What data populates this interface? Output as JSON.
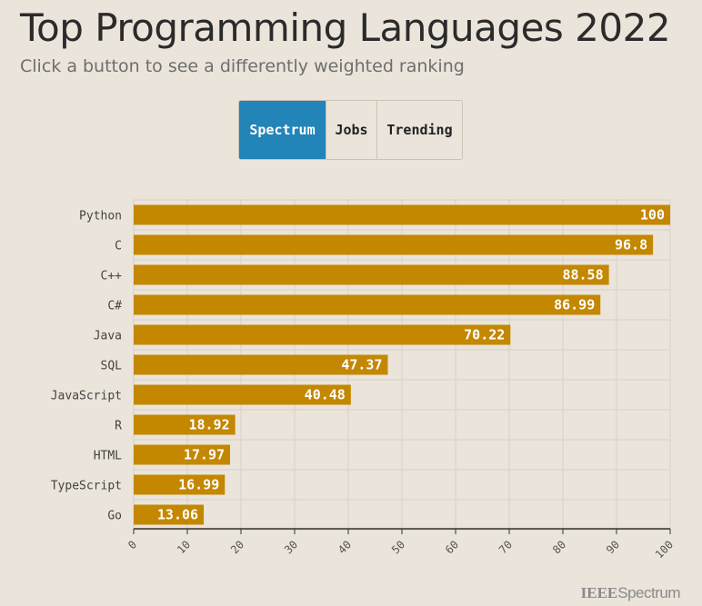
{
  "header": {
    "title": "Top Programming Languages 2022",
    "subtitle": "Click a button to see a differently weighted ranking"
  },
  "buttons": {
    "spectrum": "Spectrum",
    "jobs": "Jobs",
    "trending": "Trending",
    "active": "Spectrum"
  },
  "brand": {
    "prefix": "IEEE",
    "name": "Spectrum"
  },
  "colors": {
    "bar": "#c48700",
    "active_button": "#2384b8",
    "grid": "#d7d1c7"
  },
  "chart_data": {
    "type": "bar",
    "orientation": "horizontal",
    "categories": [
      "Python",
      "C",
      "C++",
      "C#",
      "Java",
      "SQL",
      "JavaScript",
      "R",
      "HTML",
      "TypeScript",
      "Go"
    ],
    "values": [
      100,
      96.8,
      88.58,
      86.99,
      70.22,
      47.37,
      40.48,
      18.92,
      17.97,
      16.99,
      13.06
    ],
    "xlim": [
      0,
      100
    ],
    "xticks": [
      0,
      10,
      20,
      30,
      40,
      50,
      60,
      70,
      80,
      90,
      100
    ],
    "grid": true
  }
}
